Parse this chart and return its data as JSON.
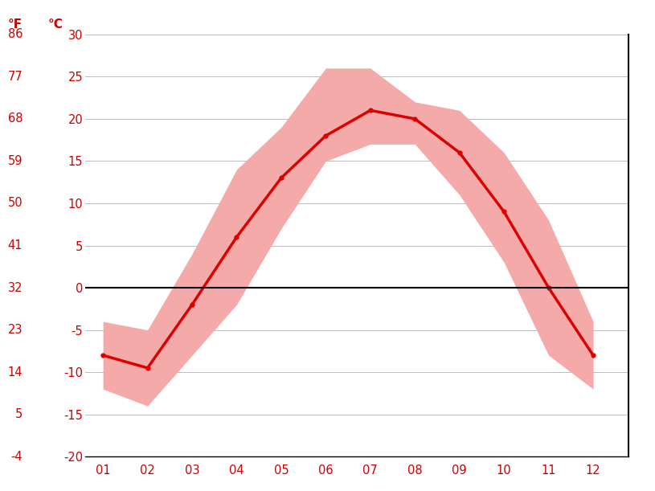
{
  "months": [
    1,
    2,
    3,
    4,
    5,
    6,
    7,
    8,
    9,
    10,
    11,
    12
  ],
  "month_labels": [
    "01",
    "02",
    "03",
    "04",
    "05",
    "06",
    "07",
    "08",
    "09",
    "10",
    "11",
    "12"
  ],
  "avg_temp_c": [
    -8,
    -9.5,
    -2,
    6,
    13,
    18,
    21,
    20,
    16,
    9,
    0,
    -8
  ],
  "high_temp_c": [
    -4,
    -5,
    4,
    14,
    19,
    26,
    26,
    22,
    21,
    16,
    8,
    -4
  ],
  "low_temp_c": [
    -12,
    -14,
    -8,
    -2,
    7,
    15,
    17,
    17,
    11,
    3,
    -8,
    -12
  ],
  "line_color": "#dd0000",
  "band_color": "#f5aaaa",
  "zero_line_color": "#000000",
  "grid_color": "#bbbbbb",
  "tick_color": "#cc0000",
  "label_color": "#cc0000",
  "ylim_c": [
    -20,
    30
  ],
  "yticks_c": [
    -20,
    -15,
    -10,
    -5,
    0,
    5,
    10,
    15,
    20,
    25,
    30
  ],
  "yticks_f": [
    -4,
    5,
    14,
    23,
    32,
    41,
    50,
    59,
    68,
    77,
    86
  ],
  "background_color": "#ffffff",
  "figsize": [
    8.15,
    6.11
  ],
  "dpi": 100
}
